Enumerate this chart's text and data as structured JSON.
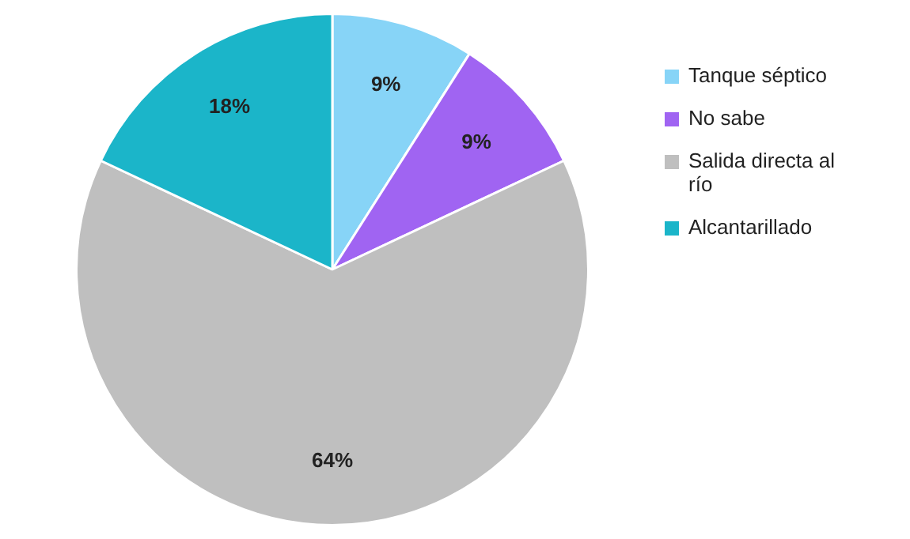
{
  "chart_data": {
    "type": "pie",
    "categories": [
      "Tanque séptico",
      "No sabe",
      "Salida directa al río",
      "Alcantarillado"
    ],
    "values": [
      9,
      9,
      64,
      18
    ],
    "colors": [
      "#87d4f7",
      "#a064f2",
      "#bfbfbf",
      "#1bb5c9"
    ],
    "value_labels": [
      "9%",
      "9%",
      "64%",
      "18%"
    ],
    "legend": "right"
  }
}
